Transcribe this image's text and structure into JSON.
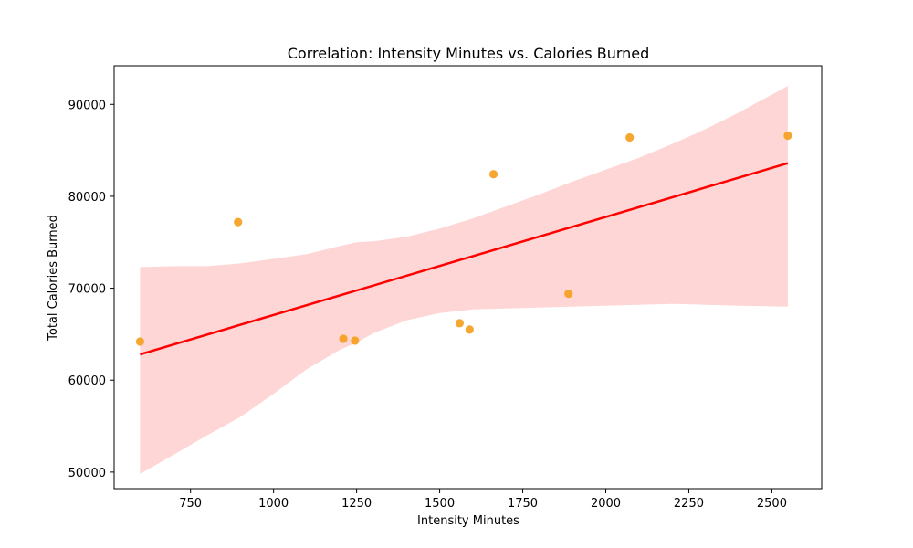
{
  "chart_data": {
    "type": "scatter",
    "title": "Correlation: Intensity Minutes vs. Calories Burned",
    "xlabel": "Intensity Minutes",
    "ylabel": "Total Calories Burned",
    "xlim": [
      520,
      2650
    ],
    "ylim": [
      48200,
      94200
    ],
    "xticks": [
      750,
      1000,
      1250,
      1500,
      1750,
      2000,
      2250,
      2500
    ],
    "yticks": [
      50000,
      60000,
      70000,
      80000,
      90000
    ],
    "grid": false,
    "legend": "none",
    "colors": {
      "points": "#f5a01f",
      "line": "#ff0000",
      "band": "#ffd6d6"
    },
    "series": [
      {
        "points": [
          {
            "x": 598,
            "y": 64200
          },
          {
            "x": 893,
            "y": 77200
          },
          {
            "x": 1210,
            "y": 64500
          },
          {
            "x": 1245,
            "y": 64300
          },
          {
            "x": 1560,
            "y": 66200
          },
          {
            "x": 1590,
            "y": 65500
          },
          {
            "x": 1662,
            "y": 82400
          },
          {
            "x": 1888,
            "y": 69400
          },
          {
            "x": 2072,
            "y": 86400
          },
          {
            "x": 2548,
            "y": 86600
          }
        ]
      }
    ],
    "regression": {
      "x0": 598,
      "y0": 62800,
      "x1": 2548,
      "y1": 83600
    },
    "confidence_band": {
      "x": [
        598,
        700,
        800,
        900,
        1000,
        1100,
        1200,
        1250,
        1300,
        1400,
        1500,
        1600,
        1700,
        1800,
        1900,
        2000,
        2100,
        2200,
        2300,
        2400,
        2548
      ],
      "upper": [
        72300,
        72400,
        72400,
        72700,
        73200,
        73700,
        74600,
        75000,
        75100,
        75600,
        76500,
        77600,
        78900,
        80200,
        81600,
        82900,
        84200,
        85700,
        87300,
        89100,
        92000
      ],
      "lower": [
        49800,
        51900,
        54000,
        56000,
        58500,
        61200,
        63300,
        64100,
        65100,
        66500,
        67300,
        67700,
        67800,
        67900,
        68000,
        68100,
        68200,
        68300,
        68200,
        68100,
        68000
      ]
    }
  }
}
